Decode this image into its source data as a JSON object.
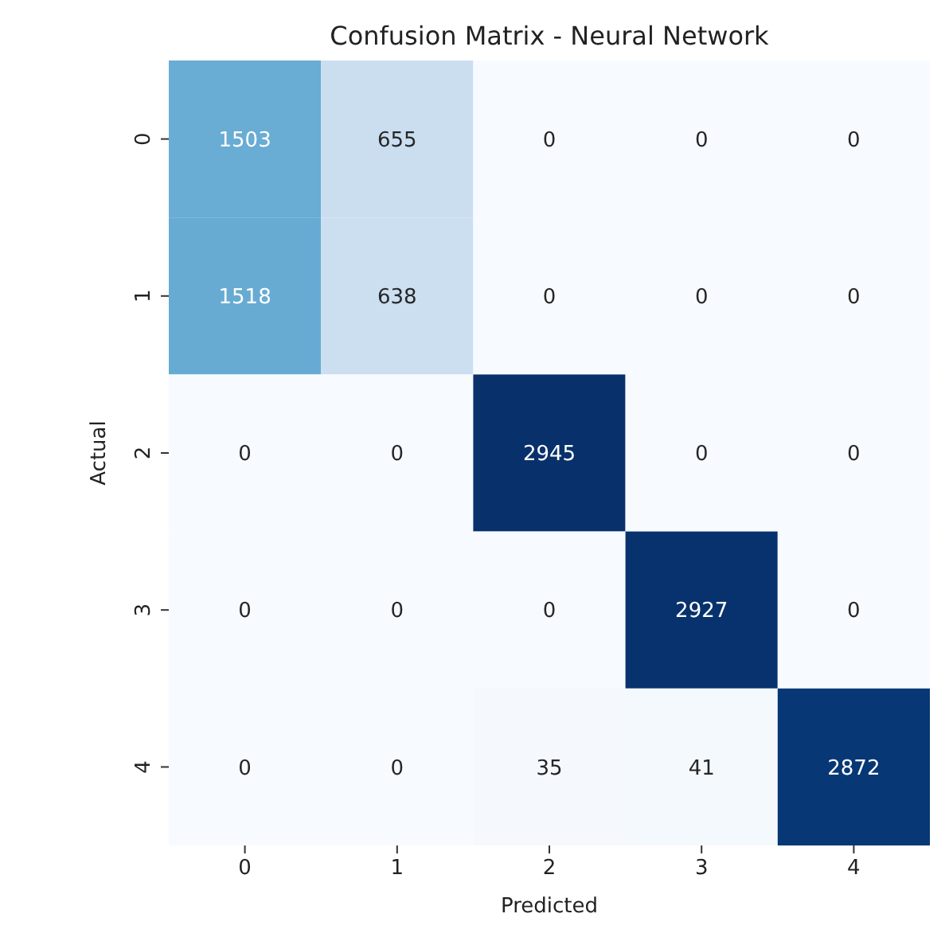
{
  "chart_data": {
    "type": "heatmap",
    "title": "Confusion Matrix - Neural Network",
    "xlabel": "Predicted",
    "ylabel": "Actual",
    "categories": [
      "0",
      "1",
      "2",
      "3",
      "4"
    ],
    "y_categories": [
      "0",
      "1",
      "2",
      "3",
      "4"
    ],
    "cells": [
      [
        1503,
        655,
        0,
        0,
        0
      ],
      [
        1518,
        638,
        0,
        0,
        0
      ],
      [
        0,
        0,
        2945,
        0,
        0
      ],
      [
        0,
        0,
        0,
        2927,
        0
      ],
      [
        0,
        0,
        35,
        41,
        2872
      ]
    ],
    "data_labels": true
  }
}
